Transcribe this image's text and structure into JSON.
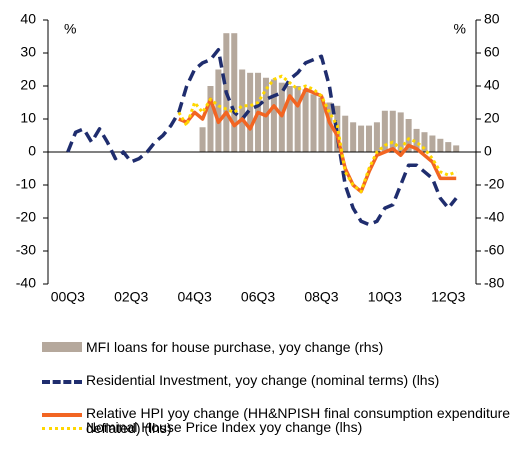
{
  "chart_data": {
    "type": "combo",
    "y_label": "%",
    "y2_label": "%",
    "categories": [
      null,
      null,
      "00Q3",
      null,
      null,
      null,
      null,
      null,
      null,
      null,
      "02Q3",
      null,
      null,
      null,
      null,
      null,
      null,
      null,
      "04Q3",
      null,
      null,
      null,
      null,
      null,
      null,
      null,
      "06Q3",
      null,
      null,
      null,
      null,
      null,
      null,
      null,
      "08Q3",
      null,
      null,
      null,
      null,
      null,
      null,
      null,
      "10Q3",
      null,
      null,
      null,
      null,
      null,
      null,
      null,
      "12Q3",
      null,
      null,
      null
    ],
    "ylim": [
      -40,
      40
    ],
    "yticks": [
      -40,
      -30,
      -20,
      -10,
      0,
      10,
      20,
      30,
      40
    ],
    "y2lim": [
      -80,
      80
    ],
    "y2ticks": [
      -80,
      -60,
      -40,
      -20,
      0,
      20,
      40,
      60,
      80
    ],
    "series": [
      {
        "name": "MFI loans for house purchase, yoy change (rhs)",
        "type": "bar",
        "axis": "y2",
        "color": "#b5a89c",
        "values": [
          null,
          null,
          null,
          null,
          null,
          null,
          null,
          null,
          null,
          null,
          null,
          null,
          null,
          null,
          null,
          null,
          null,
          null,
          null,
          15,
          40,
          50,
          72,
          72,
          50,
          48,
          48,
          45,
          44,
          42,
          40,
          40,
          38,
          35,
          33,
          30,
          28,
          22,
          18,
          16,
          16,
          18,
          25,
          25,
          24,
          20,
          14,
          12,
          10,
          8,
          6,
          4,
          null,
          null
        ]
      },
      {
        "name": "Residential Investment, yoy change (nominal terms) (lhs)",
        "type": "line",
        "style": "dashed",
        "color": "#1f2d6e",
        "values": [
          null,
          null,
          0,
          6,
          7,
          3,
          7,
          3,
          -2,
          0,
          -3,
          -2,
          0,
          3,
          5,
          8,
          12,
          20,
          25,
          27,
          28,
          31,
          18,
          12,
          10,
          13,
          14,
          16,
          17,
          18,
          22,
          24,
          27,
          28,
          29,
          20,
          5,
          -10,
          -17,
          -21,
          -22,
          -21,
          -17,
          -16,
          -10,
          -4,
          -4,
          -6,
          -8,
          -14,
          -17,
          -14,
          null,
          null
        ]
      },
      {
        "name": "Relative HPI yoy change (HH&NPISH final consumption expenditure deflated) (lhs)",
        "type": "line",
        "style": "solid",
        "color": "#f26522",
        "values": [
          null,
          null,
          null,
          null,
          null,
          null,
          null,
          null,
          null,
          null,
          null,
          null,
          null,
          null,
          null,
          null,
          10,
          9,
          12,
          10,
          16,
          9,
          12,
          8,
          10,
          7,
          12,
          11,
          14,
          11,
          17,
          14,
          19,
          18,
          17,
          9,
          5,
          -5,
          -10,
          -12,
          -6,
          -1,
          0,
          1,
          -1,
          2,
          1,
          -1,
          -3,
          -8,
          -8,
          -8,
          null,
          null
        ]
      },
      {
        "name": "Nominal House Price Index yoy change (lhs)",
        "type": "line",
        "style": "dotted",
        "color": "#ffd700",
        "values": [
          null,
          null,
          null,
          null,
          null,
          null,
          null,
          null,
          null,
          null,
          null,
          null,
          null,
          null,
          null,
          null,
          12,
          8,
          15,
          12,
          16,
          14,
          13,
          12,
          14,
          14,
          15,
          19,
          22,
          23,
          21,
          19,
          20,
          19,
          17,
          12,
          8,
          -6,
          -10,
          -12,
          -5,
          0,
          2,
          3,
          1,
          4,
          3,
          1,
          -2,
          -6,
          -7,
          -6,
          null,
          null
        ]
      }
    ]
  }
}
